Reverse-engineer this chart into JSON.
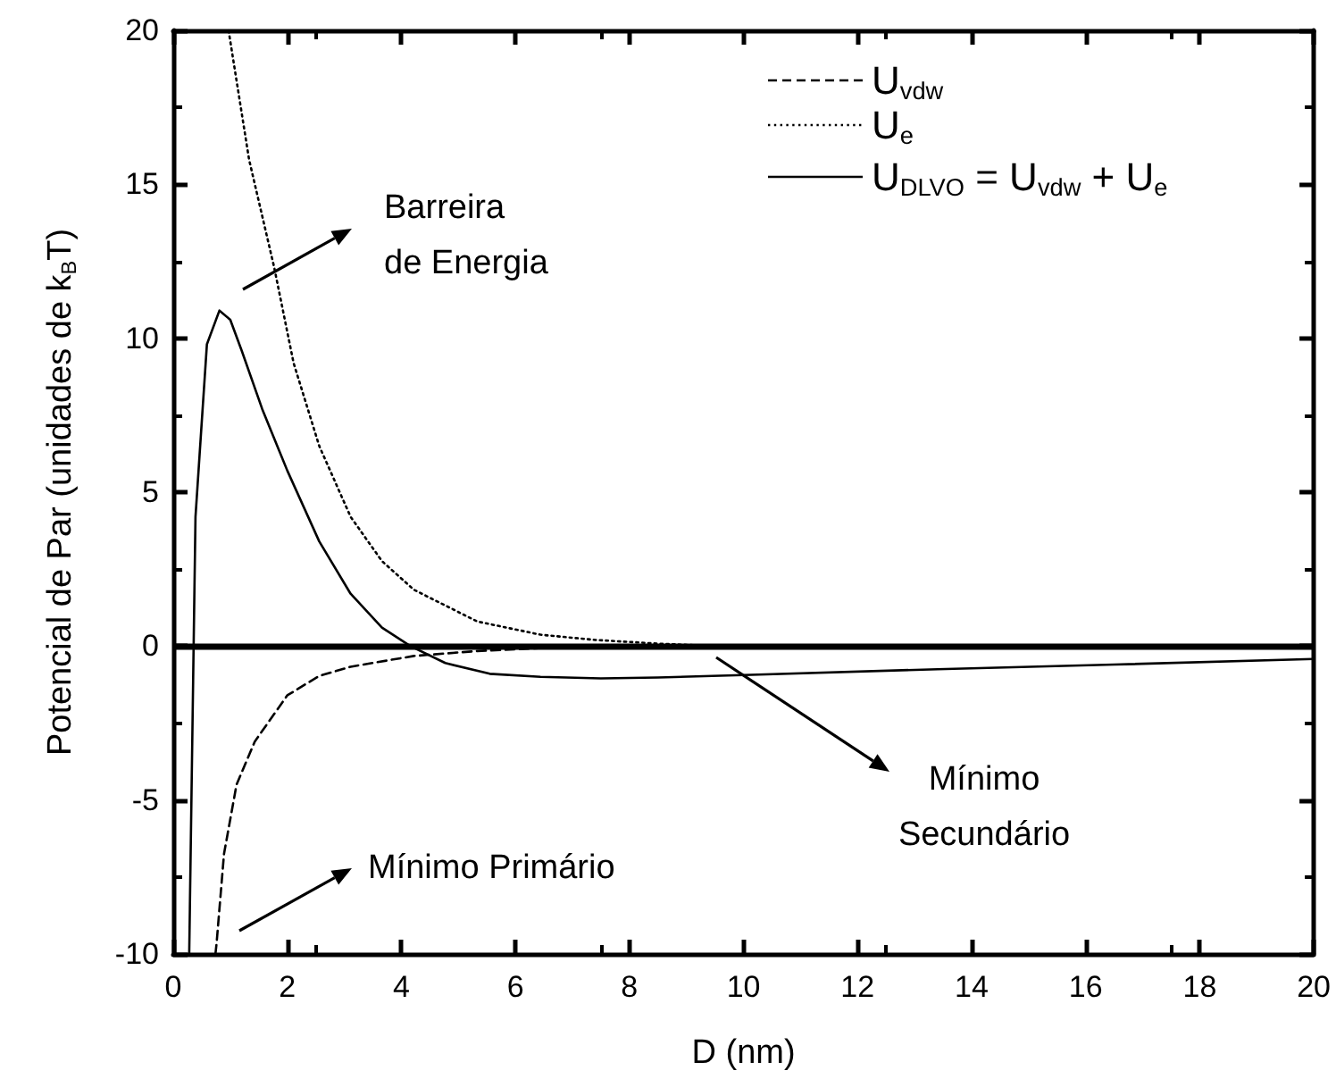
{
  "chart_data": {
    "type": "line",
    "xlabel": "D (nm)",
    "ylabel": "Potencial de Par (unidades de k$_{B}$T)",
    "xlim": [
      0,
      20
    ],
    "xticks": [
      0,
      2,
      4,
      6,
      8,
      10,
      12,
      14,
      16,
      18,
      20
    ],
    "ylim": [
      -10,
      20
    ],
    "yticks": [
      -10,
      -5,
      0,
      5,
      10,
      15,
      20
    ],
    "grid": false,
    "legend": "top right",
    "marker": "none",
    "series": [
      {
        "name": "U$_{vdw}$",
        "color": "#000000",
        "line_style": "dashed",
        "x": [
          0.74,
          0.76,
          0.89,
          1.11,
          1.43,
          2.0,
          2.56,
          3.11,
          4.22,
          5.33,
          6.66,
          8.0,
          10.0,
          14.0,
          20.0
        ],
        "values": [
          -10,
          -9.65,
          -6.75,
          -4.5,
          -3.1,
          -1.6,
          -0.97,
          -0.67,
          -0.32,
          -0.16,
          -0.05,
          -0.02,
          0,
          0,
          0
        ]
      },
      {
        "name": "U$_{e}$",
        "color": "#000000",
        "line_style": "dotted",
        "x": [
          0.97,
          1.33,
          1.77,
          2.11,
          2.56,
          3.11,
          3.66,
          4.22,
          5.33,
          6.44,
          7.4,
          8.5,
          9.5,
          14.0,
          20.0
        ],
        "values": [
          20,
          15.8,
          12.3,
          9.2,
          6.5,
          4.2,
          2.76,
          1.83,
          0.8,
          0.37,
          0.2,
          0.08,
          0,
          0,
          0
        ]
      },
      {
        "name": "U$_{DLVO}$ = U$_{vdw}$ + U$_{e}$",
        "color": "#000000",
        "line_style": "solid",
        "x": [
          0.28,
          0.39,
          0.59,
          0.81,
          1.0,
          1.2,
          1.56,
          2.0,
          2.56,
          3.11,
          3.66,
          4.16,
          4.77,
          5.55,
          6.44,
          7.5,
          8.5,
          10.0,
          13.4,
          16.5,
          20.0
        ],
        "values": [
          -10,
          4.2,
          9.8,
          10.9,
          10.6,
          9.6,
          7.7,
          5.7,
          3.4,
          1.7,
          0.6,
          0,
          -0.55,
          -0.9,
          -1.0,
          -1.05,
          -1.02,
          -0.94,
          -0.75,
          -0.6,
          -0.42
        ]
      }
    ],
    "ref_lines": [
      {
        "axis": "y",
        "value": 0,
        "color": "#000000",
        "line_style": "solid"
      }
    ],
    "annotations": [
      "Barreira\nde Energia",
      "Mínimo Primário",
      "Mínimo\nSecundário"
    ]
  }
}
